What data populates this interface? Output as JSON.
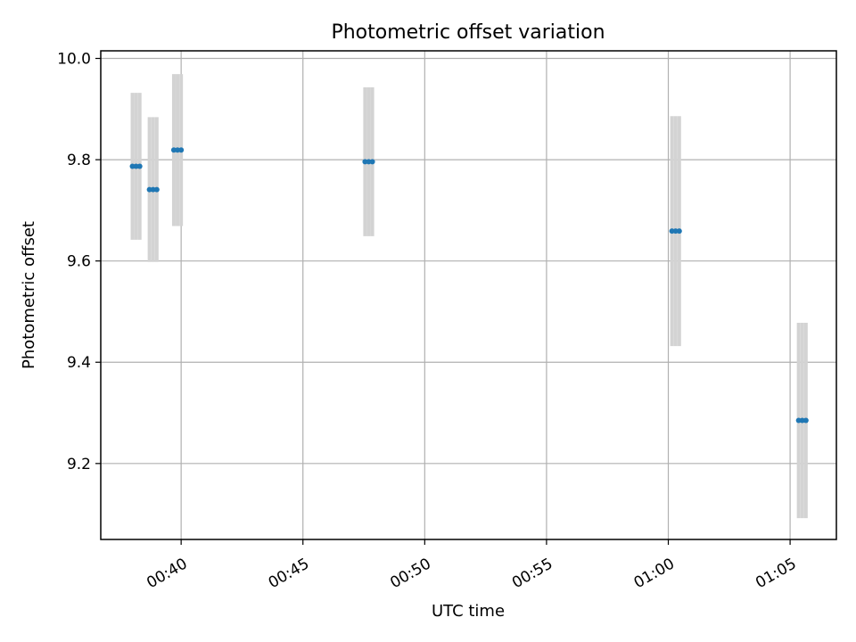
{
  "chart_data": {
    "type": "scatter",
    "title": "Photometric offset variation",
    "xlabel": "UTC time",
    "ylabel": "Photometric offset",
    "x_unit": "minutes since 00:00 UTC",
    "xlim": [
      36.7,
      66.9
    ],
    "ylim": [
      9.05,
      10.015
    ],
    "x_ticks": [
      {
        "value": 40,
        "label": "00:40"
      },
      {
        "value": 45,
        "label": "00:45"
      },
      {
        "value": 50,
        "label": "00:50"
      },
      {
        "value": 55,
        "label": "00:55"
      },
      {
        "value": 60,
        "label": "01:00"
      },
      {
        "value": 65,
        "label": "01:05"
      }
    ],
    "y_ticks": [
      {
        "value": 9.2,
        "label": "9.2"
      },
      {
        "value": 9.4,
        "label": "9.4"
      },
      {
        "value": 9.6,
        "label": "9.6"
      },
      {
        "value": 9.8,
        "label": "9.8"
      },
      {
        "value": 10.0,
        "label": "10.0"
      }
    ],
    "grid": true,
    "marker_color": "#1f77b4",
    "errorbar_color": "#d3d3d3",
    "series": [
      {
        "points": [
          {
            "x": 38.0,
            "y": 9.787,
            "yerr": 0.145
          },
          {
            "x": 38.15,
            "y": 9.787,
            "yerr": 0.145
          },
          {
            "x": 38.3,
            "y": 9.787,
            "yerr": 0.145
          },
          {
            "x": 38.7,
            "y": 9.741,
            "yerr": 0.143
          },
          {
            "x": 38.85,
            "y": 9.741,
            "yerr": 0.143
          },
          {
            "x": 39.0,
            "y": 9.741,
            "yerr": 0.143
          },
          {
            "x": 39.7,
            "y": 9.819,
            "yerr": 0.15
          },
          {
            "x": 39.85,
            "y": 9.819,
            "yerr": 0.15
          },
          {
            "x": 40.0,
            "y": 9.819,
            "yerr": 0.15
          },
          {
            "x": 47.55,
            "y": 9.796,
            "yerr": 0.147
          },
          {
            "x": 47.7,
            "y": 9.796,
            "yerr": 0.147
          },
          {
            "x": 47.85,
            "y": 9.796,
            "yerr": 0.147
          },
          {
            "x": 60.15,
            "y": 9.659,
            "yerr": 0.227
          },
          {
            "x": 60.3,
            "y": 9.659,
            "yerr": 0.227
          },
          {
            "x": 60.45,
            "y": 9.659,
            "yerr": 0.227
          },
          {
            "x": 65.35,
            "y": 9.285,
            "yerr": 0.193
          },
          {
            "x": 65.5,
            "y": 9.285,
            "yerr": 0.193
          },
          {
            "x": 65.65,
            "y": 9.285,
            "yerr": 0.193
          }
        ]
      }
    ]
  }
}
